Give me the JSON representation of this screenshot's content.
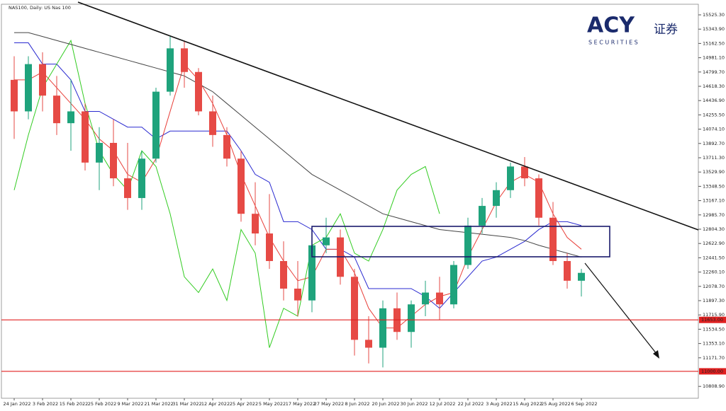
{
  "logo": {
    "name": "ACY",
    "chinese": "证券",
    "tagline": "S E C U R I T I E S"
  },
  "chart_data": {
    "type": "candlestick",
    "title": "NAS100, Daily:  US Nas 100",
    "categories": [
      "24 Jan 2022",
      null,
      "3 Feb 2022",
      null,
      "15 Feb 2022",
      null,
      "25 Feb 2022",
      null,
      "9 Mar 2022",
      null,
      "21 Mar 2022",
      null,
      "31 Mar 2022",
      null,
      "12 Apr 2022",
      null,
      "25 Apr 2022",
      null,
      "5 May 2022",
      null,
      "17 May 2022",
      null,
      "27 May 2022",
      null,
      "8 Jun 2022",
      null,
      "20 Jun 2022",
      null,
      "30 Jun 2022",
      null,
      "12 Jul 2022",
      null,
      "22 Jul 2022",
      null,
      "3 Aug 2022",
      null,
      "15 Aug 2022",
      null,
      "25 Aug 2022",
      null,
      "6 Sep 2022"
    ],
    "open": [
      14700,
      14300,
      14900,
      14500,
      14150,
      14300,
      13650,
      13900,
      13450,
      13200,
      13700,
      14550,
      15100,
      14800,
      14300,
      14000,
      13700,
      13000,
      12750,
      12400,
      12050,
      11900,
      12600,
      12700,
      12200,
      11400,
      11300,
      11800,
      11500,
      11850,
      12000,
      11850,
      12350,
      12850,
      13100,
      13300,
      13600,
      13450,
      12950,
      12400,
      12150
    ],
    "high": [
      15000,
      15000,
      15050,
      14750,
      14700,
      14400,
      14100,
      14200,
      13900,
      13800,
      14600,
      15250,
      15200,
      14850,
      14500,
      14100,
      13800,
      13400,
      13250,
      12650,
      12400,
      12700,
      12950,
      12800,
      12300,
      11700,
      11900,
      12000,
      11900,
      12150,
      12200,
      12400,
      12950,
      13200,
      13400,
      13650,
      13720,
      13500,
      13150,
      12500,
      12300
    ],
    "low": [
      13950,
      14200,
      14300,
      14000,
      13800,
      13550,
      13300,
      13350,
      13050,
      13050,
      13650,
      14500,
      14600,
      14250,
      13850,
      13600,
      12900,
      12600,
      12300,
      11900,
      11700,
      11750,
      12500,
      12100,
      11200,
      11100,
      11050,
      11400,
      11300,
      11700,
      11650,
      11800,
      12300,
      12750,
      12950,
      13200,
      13350,
      12850,
      12350,
      12050,
      11950
    ],
    "close": [
      14300,
      14900,
      14500,
      14150,
      14300,
      13650,
      13900,
      13450,
      13200,
      13700,
      14550,
      15100,
      14800,
      14300,
      14000,
      13700,
      13000,
      12750,
      12400,
      12050,
      11900,
      12600,
      12700,
      12200,
      11400,
      11300,
      11800,
      11500,
      11850,
      12000,
      11850,
      12350,
      12850,
      13100,
      13300,
      13600,
      13450,
      12950,
      12400,
      12150,
      12250
    ],
    "up_color": "#1fa37c",
    "down_color": "#e64a45",
    "lines": [
      {
        "color": "#2a2ad0",
        "values": [
          15170,
          15170,
          14900,
          14900,
          14700,
          14300,
          14300,
          14200,
          14100,
          14100,
          13950,
          14050,
          14050,
          14050,
          14050,
          14050,
          13800,
          13500,
          13400,
          12900,
          12900,
          12800,
          12550,
          12550,
          12450,
          12050,
          12050,
          12050,
          12050,
          11950,
          11800,
          12000,
          12200,
          12400,
          12450,
          12550,
          12650,
          12800,
          12900,
          12900,
          12850
        ]
      },
      {
        "color": "#e8403a",
        "values": [
          14700,
          14700,
          14800,
          14600,
          14400,
          14200,
          13950,
          13800,
          13500,
          13400,
          13700,
          14300,
          14900,
          14700,
          14400,
          14000,
          13500,
          13100,
          12700,
          12400,
          12150,
          12200,
          12550,
          12550,
          12250,
          11800,
          11550,
          11550,
          11700,
          11850,
          11950,
          12000,
          12450,
          12800,
          13150,
          13400,
          13500,
          13400,
          13000,
          12700,
          12550
        ]
      },
      {
        "color": "#33cc22",
        "values": [
          13300,
          14000,
          14600,
          14900,
          15200,
          14400,
          13800,
          13500,
          13300,
          13800,
          13600,
          13000,
          12200,
          12000,
          12300,
          11900,
          12800,
          12500,
          11300,
          11800,
          11700,
          12600,
          12700,
          13000,
          12500,
          12400,
          12800,
          13300,
          13500,
          13600,
          13000,
          null,
          null,
          null,
          null,
          null,
          null,
          null,
          null,
          null,
          null
        ]
      },
      {
        "color": "#444444",
        "values": [
          15300,
          15300,
          15250,
          15200,
          15150,
          15100,
          15050,
          15000,
          14950,
          14900,
          14850,
          14800,
          14750,
          14650,
          14550,
          14400,
          14250,
          14100,
          13950,
          13800,
          13650,
          13500,
          13400,
          13300,
          13200,
          13100,
          13000,
          12950,
          12900,
          12850,
          12800,
          12780,
          12760,
          12740,
          12720,
          12700,
          12660,
          12600,
          12550,
          12500,
          12450
        ]
      }
    ],
    "levels": [
      {
        "value": 11653,
        "label": "11653.00",
        "color": "#e02020"
      },
      {
        "value": 11000,
        "label": "11000.00",
        "color": "#e02020"
      }
    ],
    "ylim": [
      10667,
      15642
    ],
    "yticks": [
      {
        "value": 15525.3,
        "label": "15525.30"
      },
      {
        "value": 15343.9,
        "label": "15343.90"
      },
      {
        "value": 15162.5,
        "label": "15162.50"
      },
      {
        "value": 14981.1,
        "label": "14981.10"
      },
      {
        "value": 14799.7,
        "label": "14799.70"
      },
      {
        "value": 14618.3,
        "label": "14618.30"
      },
      {
        "value": 14436.9,
        "label": "14436.90"
      },
      {
        "value": 14255.5,
        "label": "14255.50"
      },
      {
        "value": 14074.1,
        "label": "14074.10"
      },
      {
        "value": 13892.7,
        "label": "13892.70"
      },
      {
        "value": 13711.3,
        "label": "13711.30"
      },
      {
        "value": 13529.9,
        "label": "13529.90"
      },
      {
        "value": 13348.5,
        "label": "13348.50"
      },
      {
        "value": 13167.1,
        "label": "13167.10"
      },
      {
        "value": 12985.7,
        "label": "12985.70"
      },
      {
        "value": 12804.3,
        "label": "12804.30"
      },
      {
        "value": 12622.9,
        "label": "12622.90"
      },
      {
        "value": 12441.5,
        "label": "12441.50"
      },
      {
        "value": 12260.1,
        "label": "12260.10"
      },
      {
        "value": 12078.7,
        "label": "12078.70"
      },
      {
        "value": 11897.3,
        "label": "11897.30"
      },
      {
        "value": 11715.9,
        "label": "11715.90"
      },
      {
        "value": 11534.5,
        "label": "11534.50"
      },
      {
        "value": 11353.1,
        "label": "11353.10"
      },
      {
        "value": 11171.7,
        "label": "11171.70"
      },
      {
        "value": 10808.9,
        "label": "10808.90"
      }
    ]
  }
}
